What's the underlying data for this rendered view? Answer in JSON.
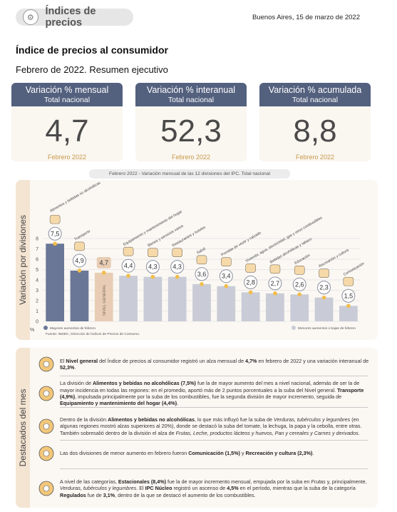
{
  "header": {
    "pill_title": "Índices de precios",
    "date": "Buenos Aires, 15 de marzo de 2022"
  },
  "title": "Índice de precios al consumidor",
  "subtitle": "Febrero de 2022. Resumen ejecutivo",
  "cards": [
    {
      "label": "Variación % mensual",
      "scope": "Total nacional",
      "value": "4,7",
      "period": "Febrero 2022"
    },
    {
      "label": "Variación % interanual",
      "scope": "Total nacional",
      "value": "52,3",
      "period": "Febrero 2022"
    },
    {
      "label": "Variación % acumulada",
      "scope": "Total nacional",
      "value": "8,8",
      "period": "Febrero 2022"
    }
  ],
  "chart_section_label": "Variación por divisiones",
  "chart_subtitle": "Febrero 2022 - Variación mensual de las 12 divisiones del IPC. Total nacional",
  "chart_data": {
    "type": "bar",
    "categories": [
      "Alimentos y bebidas no alcohólicas",
      "Transporte",
      "NIVEL GENERAL",
      "Equipamiento y mantenimiento del hogar",
      "Bienes y servicios varios",
      "Restaurantes y hoteles",
      "Salud",
      "Prendas de vestir y calzado",
      "Vivienda, agua, electricidad, gas y otros combustibles",
      "Bebidas alcohólicas y tabaco",
      "Educación",
      "Recreación y cultura",
      "Comunicación"
    ],
    "values": [
      7.5,
      4.9,
      4.7,
      4.4,
      4.3,
      4.3,
      3.6,
      3.4,
      2.8,
      2.7,
      2.6,
      2.3,
      1.5
    ],
    "value_labels": [
      "7,5",
      "4,9",
      "4,7",
      "4,4",
      "4,3",
      "4,3",
      "3,6",
      "3,4",
      "2,8",
      "2,7",
      "2,6",
      "2,3",
      "1,5"
    ],
    "bar_labels": [
      "Alimentos y bebidas no alcohólicas",
      "Transporte",
      "",
      "Equipamiento y mantenimiento del hogar",
      "Bienes y servicios varios",
      "Restaurantes y hoteles",
      "Salud",
      "Prendas de vestir y calzado",
      "Vivienda, agua, electricidad, gas y otros combustibles",
      "Bebidas alcohólicas y tabaco",
      "Educación",
      "Recreación y cultura",
      "Comunicación"
    ],
    "general_bar_text": "NIVEL GENERAL",
    "ylabel": "%",
    "yticks": [
      0,
      1,
      2,
      3,
      4,
      5,
      6,
      7,
      8
    ],
    "ylim": [
      0,
      8
    ],
    "legend": {
      "above": "Mayores aumentos de febrero",
      "below": "Menores aumentos o bajas de febrero"
    },
    "source": "Fuente: INDEC, Dirección de Índices de Precios de Consumo.",
    "colors": {
      "above": "#6b7797",
      "general": "#e8cdb4",
      "below": "#c9ccd6",
      "dot": "#f2bd4a",
      "grid": "#d9d9d9"
    }
  },
  "highlights": {
    "section_label": "Destacados del mes",
    "items": [
      {
        "icon": "food-basket-icon",
        "html": "El <b>Nivel general</b> del Índice de precios al consumidor registró un alza mensual de <b>4,7%</b> en febrero de 2022 y una variación interanual de <b>52,3%</b>."
      },
      {
        "icon": "basket-car-icon",
        "html": "La división de <b>Alimentos y bebidas no alcohólicas (7,5%)</b> fue la de mayor aumento del mes a nivel nacional, además de ser la de mayor incidencia en todas las regiones: en el promedio, aportó más de 2 puntos porcentuales a la suba del Nivel general. <b>Transporte (4,9%)</b>, impulsada principalmente por la suba de los combustibles, fue la segunda división de mayor incremento, seguida de <b>Equipamiento y mantenimiento del hogar (4,4%)</b>."
      },
      {
        "icon": "vegetables-icon",
        "html": "Dentro de la división <b>Alimentos y bebidas no alcohólicas</b>, lo que más influyó fue la suba de <i>Verduras, tubérculos y legumbres</i> (en algunas regiones mostró alzas superiores al 20%), donde se destacó la suba del tomate, la lechuga, la papa y la cebolla, entre otras. También sobresalió dentro de la división el alza de <i>Frutas, Leche, productos lácteos y huevos, Pan y cereales y Carnes y derivados</i>."
      },
      {
        "icon": "phone-icon",
        "html": "Las dos divisiones de menor aumento en febrero fueron <b>Comunicación (1,5%)</b> y <b>Recreación y cultura (2,3%)</b>."
      },
      {
        "icon": "banana-icon",
        "html": "A nivel de las categorías, <b>Estacionales (8,4%)</b> fue la de mayor incremento mensual, empujada por la suba en <i>Frutas</i> y, principalmente, <i>Verduras, tubérculos y legumbres</i>. El <b>IPC Núcleo</b> registró un ascenso de <b>4,5%</b> en el período, mientras que la suba de la categoría <b>Regulados</b> fue de <b>3,1%</b>, dentro de la que se destacó el aumento de los combustibles."
      }
    ]
  }
}
